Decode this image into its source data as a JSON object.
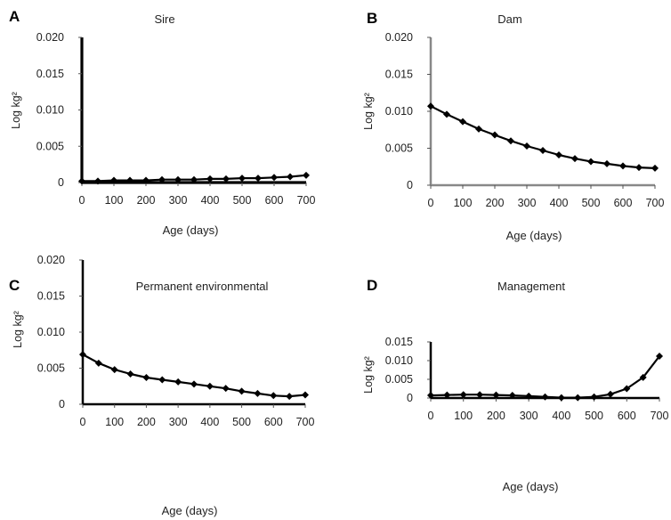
{
  "chart_data": [
    {
      "panel": "A",
      "type": "line",
      "title": "Sire",
      "xlabel": "Age (days)",
      "ylabel": "Log kg²",
      "x": [
        0,
        50,
        100,
        150,
        200,
        250,
        300,
        350,
        400,
        450,
        500,
        550,
        600,
        650,
        700
      ],
      "series": [
        {
          "values": [
            0.0002,
            0.0002,
            0.0003,
            0.0003,
            0.0003,
            0.0004,
            0.0004,
            0.0004,
            0.0005,
            0.0005,
            0.0006,
            0.0006,
            0.0007,
            0.0008,
            0.001
          ]
        }
      ],
      "ylim": [
        0,
        0.02
      ],
      "xlim": [
        0,
        700
      ],
      "xticks": [
        "0",
        "100",
        "200",
        "300",
        "400",
        "500",
        "600",
        "700"
      ],
      "yticks": [
        "0",
        "0.005",
        "0.010",
        "0.015",
        "0.020"
      ]
    },
    {
      "panel": "B",
      "type": "line",
      "title": "Dam",
      "xlabel": "Age (days)",
      "ylabel": "Log kg²",
      "x": [
        0,
        50,
        100,
        150,
        200,
        250,
        300,
        350,
        400,
        450,
        500,
        550,
        600,
        650,
        700
      ],
      "series": [
        {
          "values": [
            0.0107,
            0.0096,
            0.0086,
            0.0076,
            0.0068,
            0.006,
            0.0053,
            0.0047,
            0.0041,
            0.0036,
            0.0032,
            0.0029,
            0.0026,
            0.0024,
            0.0023
          ]
        }
      ],
      "ylim": [
        0,
        0.02
      ],
      "xlim": [
        0,
        700
      ],
      "xticks": [
        "0",
        "100",
        "200",
        "300",
        "400",
        "500",
        "600",
        "700"
      ],
      "yticks": [
        "0",
        "0.005",
        "0.010",
        "0.015",
        "0.020"
      ]
    },
    {
      "panel": "C",
      "type": "line",
      "title": "Permanent environmental",
      "xlabel": "Age (days)",
      "ylabel": "Log kg²",
      "x": [
        0,
        50,
        100,
        150,
        200,
        250,
        300,
        350,
        400,
        450,
        500,
        550,
        600,
        650,
        700
      ],
      "series": [
        {
          "values": [
            0.0069,
            0.0057,
            0.0048,
            0.0042,
            0.0037,
            0.0034,
            0.0031,
            0.0028,
            0.0025,
            0.0022,
            0.0018,
            0.0015,
            0.0012,
            0.0011,
            0.0013
          ]
        }
      ],
      "ylim": [
        0,
        0.02
      ],
      "xlim": [
        0,
        700
      ],
      "xticks": [
        "0",
        "100",
        "200",
        "300",
        "400",
        "500",
        "600",
        "700"
      ],
      "yticks": [
        "0",
        "0.005",
        "0.010",
        "0.015",
        "0.020"
      ]
    },
    {
      "panel": "D",
      "type": "line",
      "title": "Management",
      "xlabel": "Age (days)",
      "ylabel": "Log kg²",
      "x": [
        0,
        50,
        100,
        150,
        200,
        250,
        300,
        350,
        400,
        450,
        500,
        550,
        600,
        650,
        700
      ],
      "series": [
        {
          "values": [
            0.0007,
            0.0008,
            0.0009,
            0.0009,
            0.0008,
            0.0007,
            0.0005,
            0.0003,
            0.0001,
            0.0001,
            0.0003,
            0.001,
            0.0025,
            0.0055,
            0.0112
          ]
        }
      ],
      "ylim": [
        0,
        0.015
      ],
      "xlim": [
        0,
        700
      ],
      "xticks": [
        "0",
        "100",
        "200",
        "300",
        "400",
        "500",
        "600",
        "700"
      ],
      "yticks": [
        "0",
        "0.005",
        "0.010",
        "0.015"
      ]
    }
  ]
}
